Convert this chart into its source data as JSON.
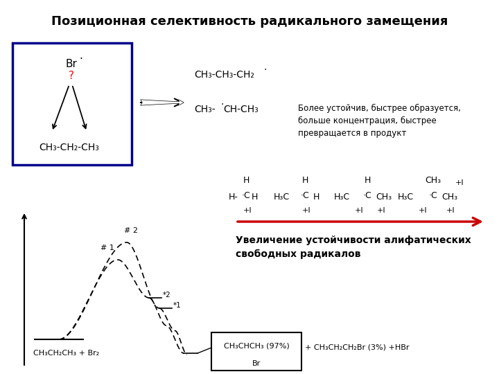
{
  "title": "Позиционная селективность радикального замещения",
  "title_fontsize": 13,
  "bg_color": "#ffffff",
  "reaction_text": "CH₃CH₂CH₃ + Br₂",
  "product_box_text": "CH₃CHCH₃ (97%)",
  "product_sub": "Br",
  "product_after": "+ CH₃CH₂CH₂Br (3%) +HBr",
  "stability_text": "Увеличение устойчивости алифатических\nсвободных радикалов",
  "note_text": "Более устойчив, быстрее образуется,\nбольше концентрация, быстрее\nпревращается в продукт",
  "arrow_color": "#cc0000",
  "box_edge_color": "#00008B"
}
